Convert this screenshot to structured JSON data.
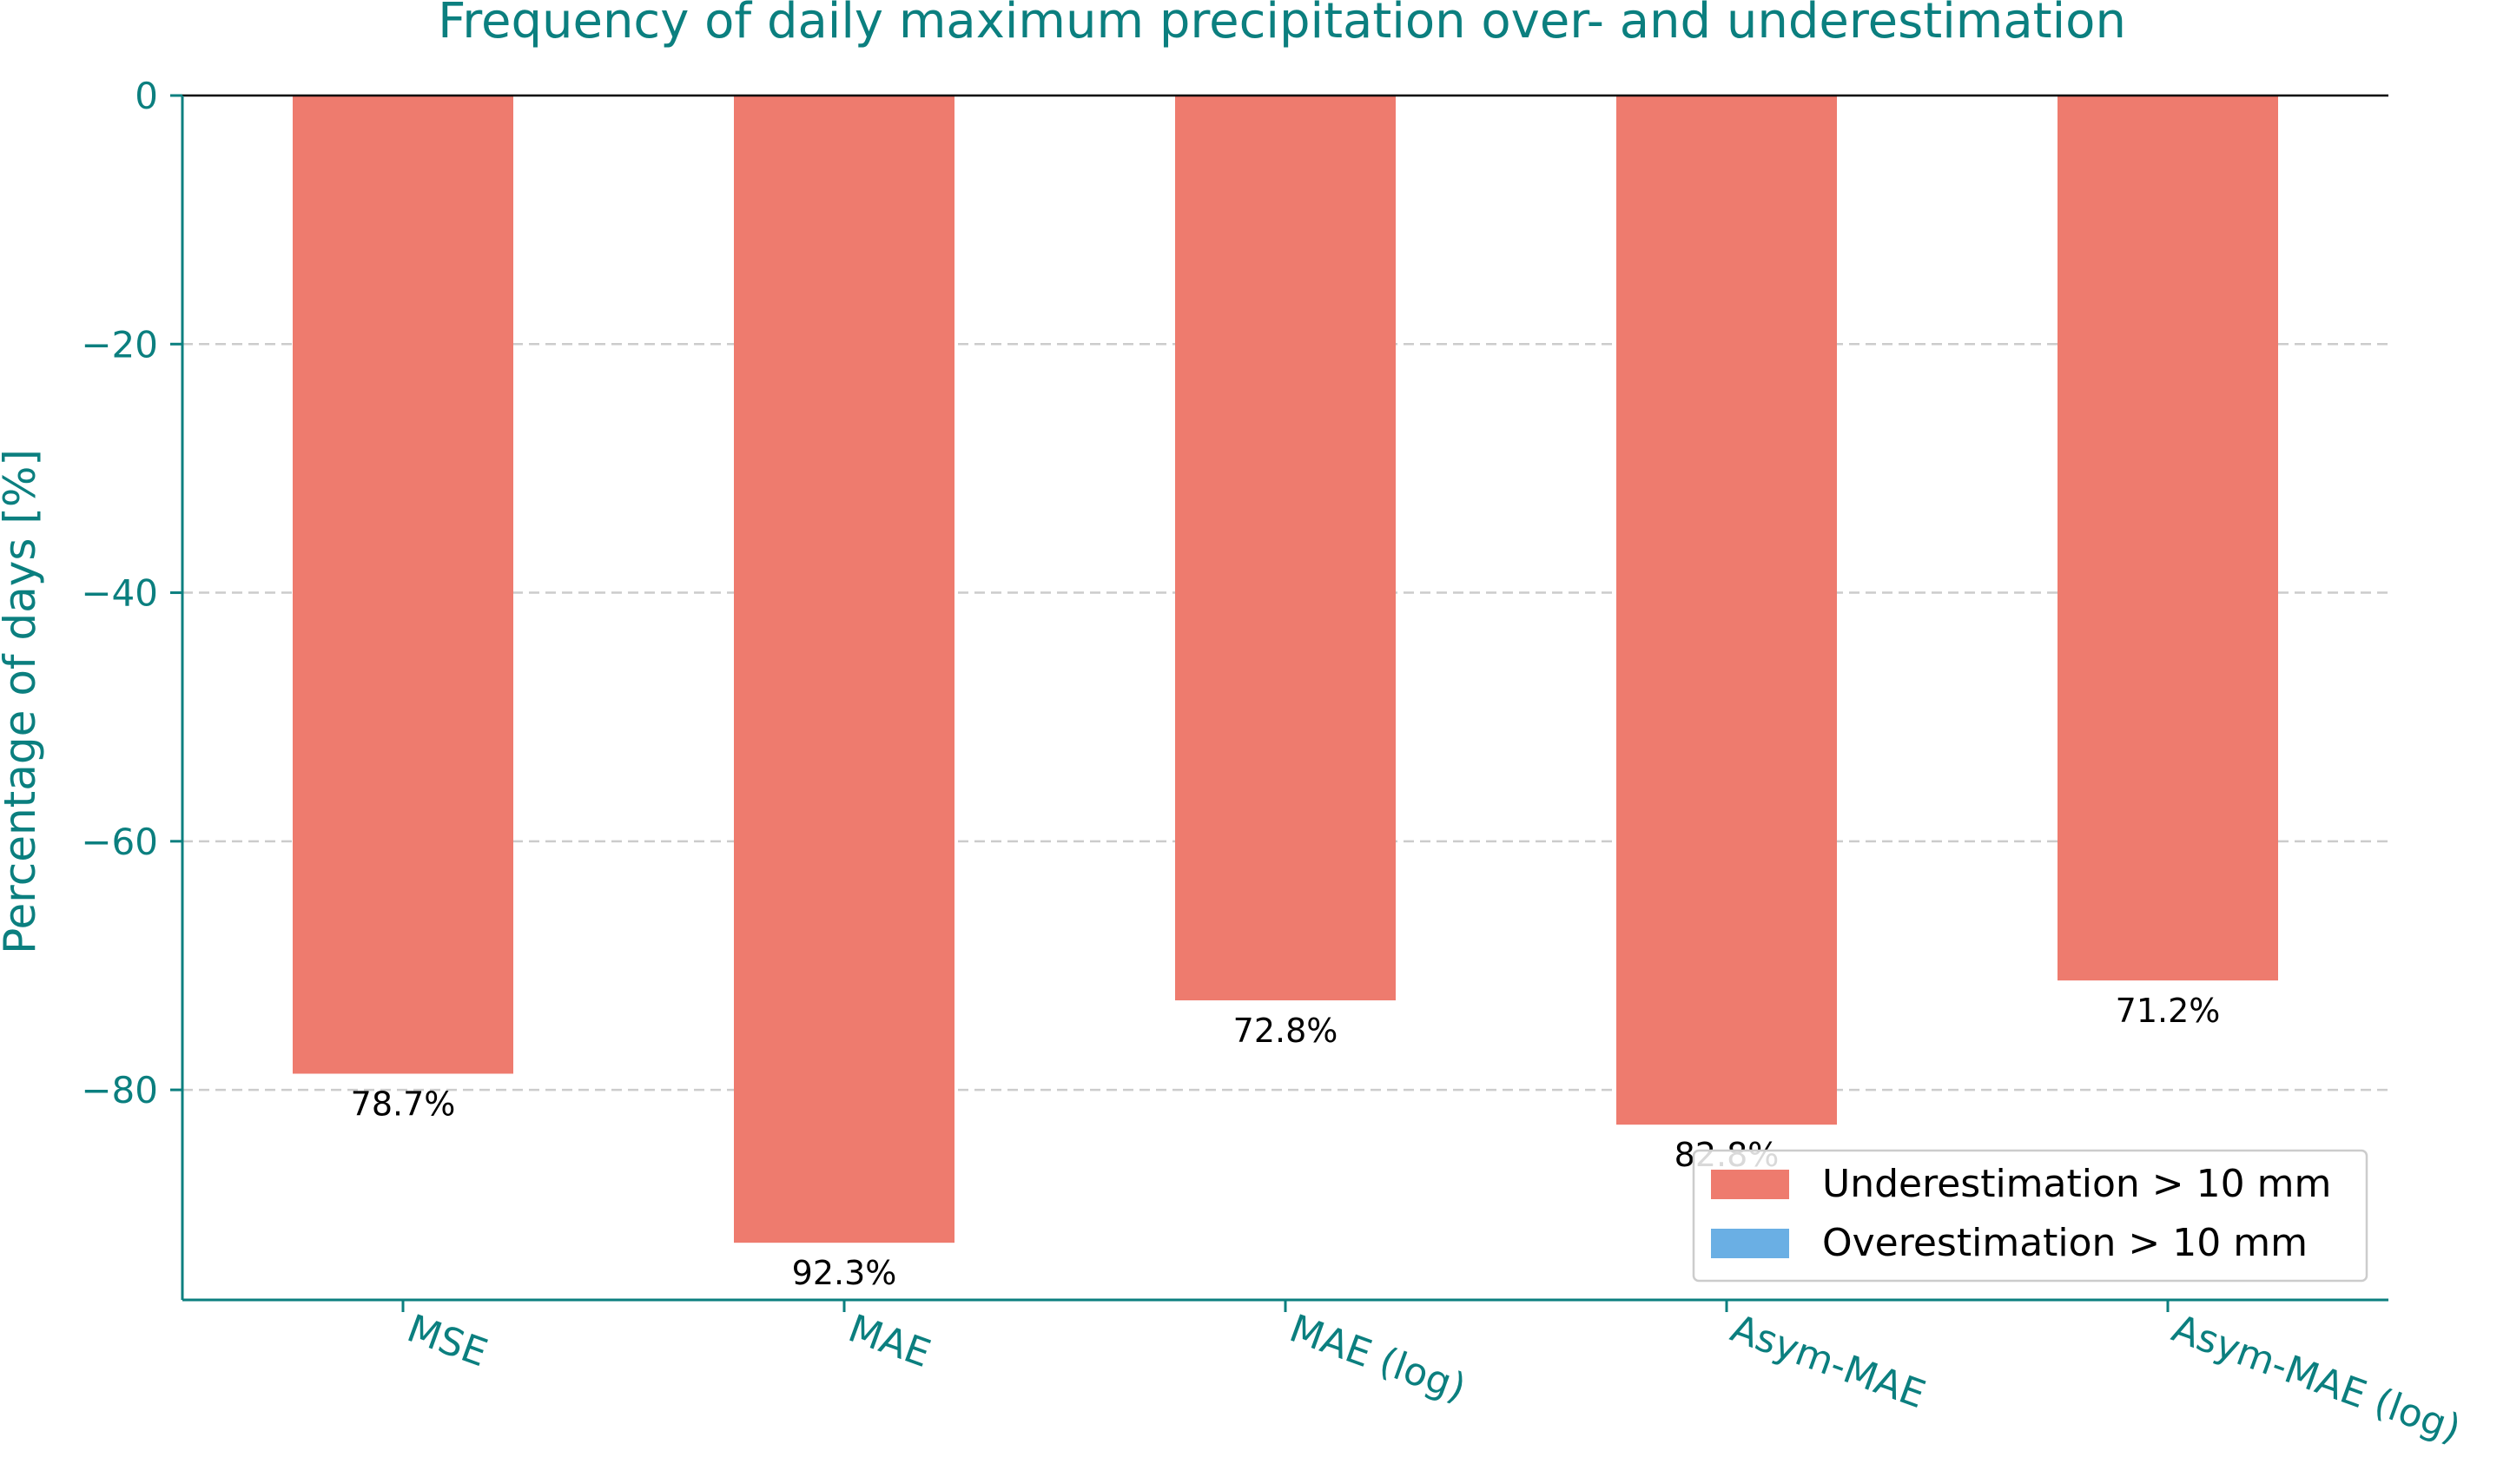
{
  "chart_data": {
    "type": "bar",
    "title": "Frequency of daily maximum precipitation over- and underestimation",
    "xlabel": "",
    "ylabel": "Percentage of days [%]",
    "categories": [
      "MSE",
      "MAE",
      "MAE (log)",
      "Asym-MAE",
      "Asym-MAE (log)"
    ],
    "series": [
      {
        "name": "Underestimation > 10 mm",
        "color": "#ee7b6e",
        "values": [
          -78.7,
          -92.3,
          -72.8,
          -82.8,
          -71.2
        ],
        "data_labels": [
          "78.7%",
          "92.3%",
          "72.8%",
          "82.8%",
          "71.2%"
        ]
      },
      {
        "name": "Overestimation > 10 mm",
        "color": "#6aafe4",
        "values": [
          0,
          0,
          0,
          0,
          0
        ]
      }
    ],
    "ylim": [
      -96.9,
      0
    ],
    "yticks": [
      0,
      -20,
      -40,
      -60,
      -80
    ],
    "ytick_labels": [
      "0",
      "−20",
      "−40",
      "−60",
      "−80"
    ],
    "grid": "y-dashed",
    "legend_position": "lower-right",
    "accent_color": "#0b7f7f"
  }
}
